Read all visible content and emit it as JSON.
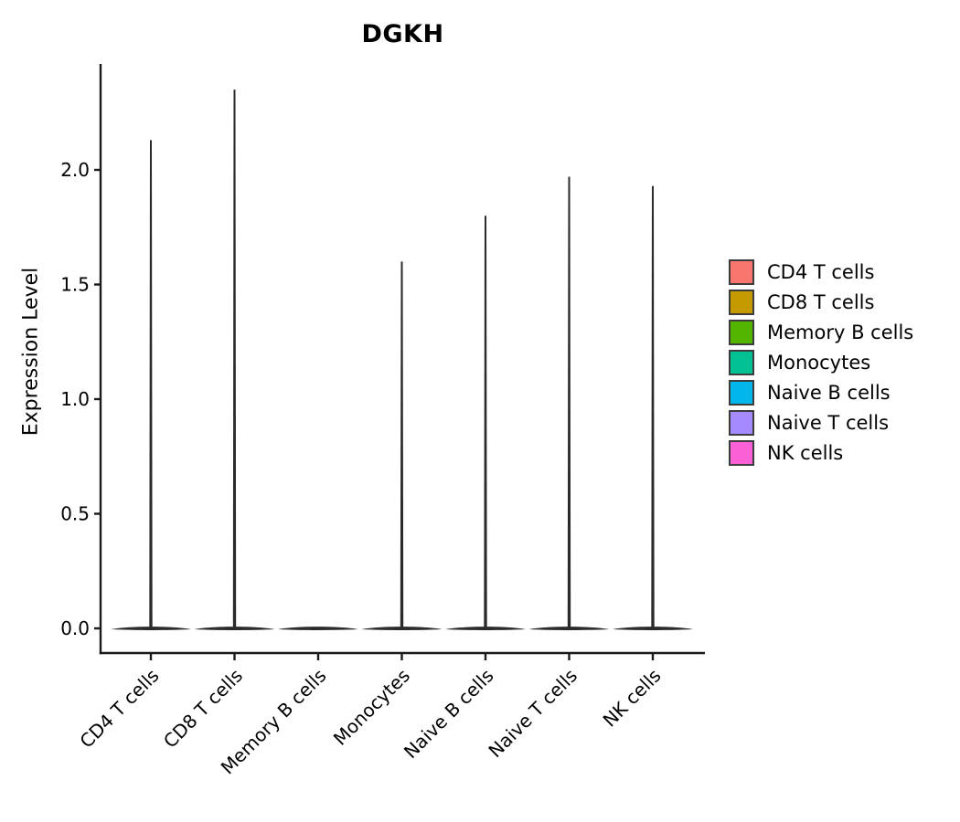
{
  "chart_data": {
    "type": "violin",
    "title": "DGKH",
    "xlabel": "",
    "ylabel": "Expression Level",
    "categories": [
      "CD4 T cells",
      "CD8 T cells",
      "Memory B cells",
      "Monocytes",
      "Naive B cells",
      "Naive T cells",
      "NK cells"
    ],
    "y_ticks": [
      "0.0",
      "0.5",
      "1.0",
      "1.5",
      "2.0"
    ],
    "y_tick_values": [
      0.0,
      0.5,
      1.0,
      1.5,
      2.0
    ],
    "ylim": [
      0.0,
      2.45
    ],
    "grid": false,
    "legend_position": "right",
    "violin_render_color": "#2b2b2b",
    "series": [
      {
        "name": "CD4 T cells",
        "color": "#F8766D",
        "max_expression": 2.13,
        "density_peak_at": 0.0
      },
      {
        "name": "CD8 T cells",
        "color": "#C49A00",
        "max_expression": 2.35,
        "density_peak_at": 0.0
      },
      {
        "name": "Memory B cells",
        "color": "#53B400",
        "max_expression": 0.0,
        "density_peak_at": 0.0
      },
      {
        "name": "Monocytes",
        "color": "#00C094",
        "max_expression": 1.6,
        "density_peak_at": 0.0
      },
      {
        "name": "Naive B cells",
        "color": "#00B6EB",
        "max_expression": 1.8,
        "density_peak_at": 0.0
      },
      {
        "name": "Naive T cells",
        "color": "#A58AFF",
        "max_expression": 1.97,
        "density_peak_at": 0.0
      },
      {
        "name": "NK cells",
        "color": "#FB61D7",
        "max_expression": 1.93,
        "density_peak_at": 0.0
      }
    ]
  }
}
